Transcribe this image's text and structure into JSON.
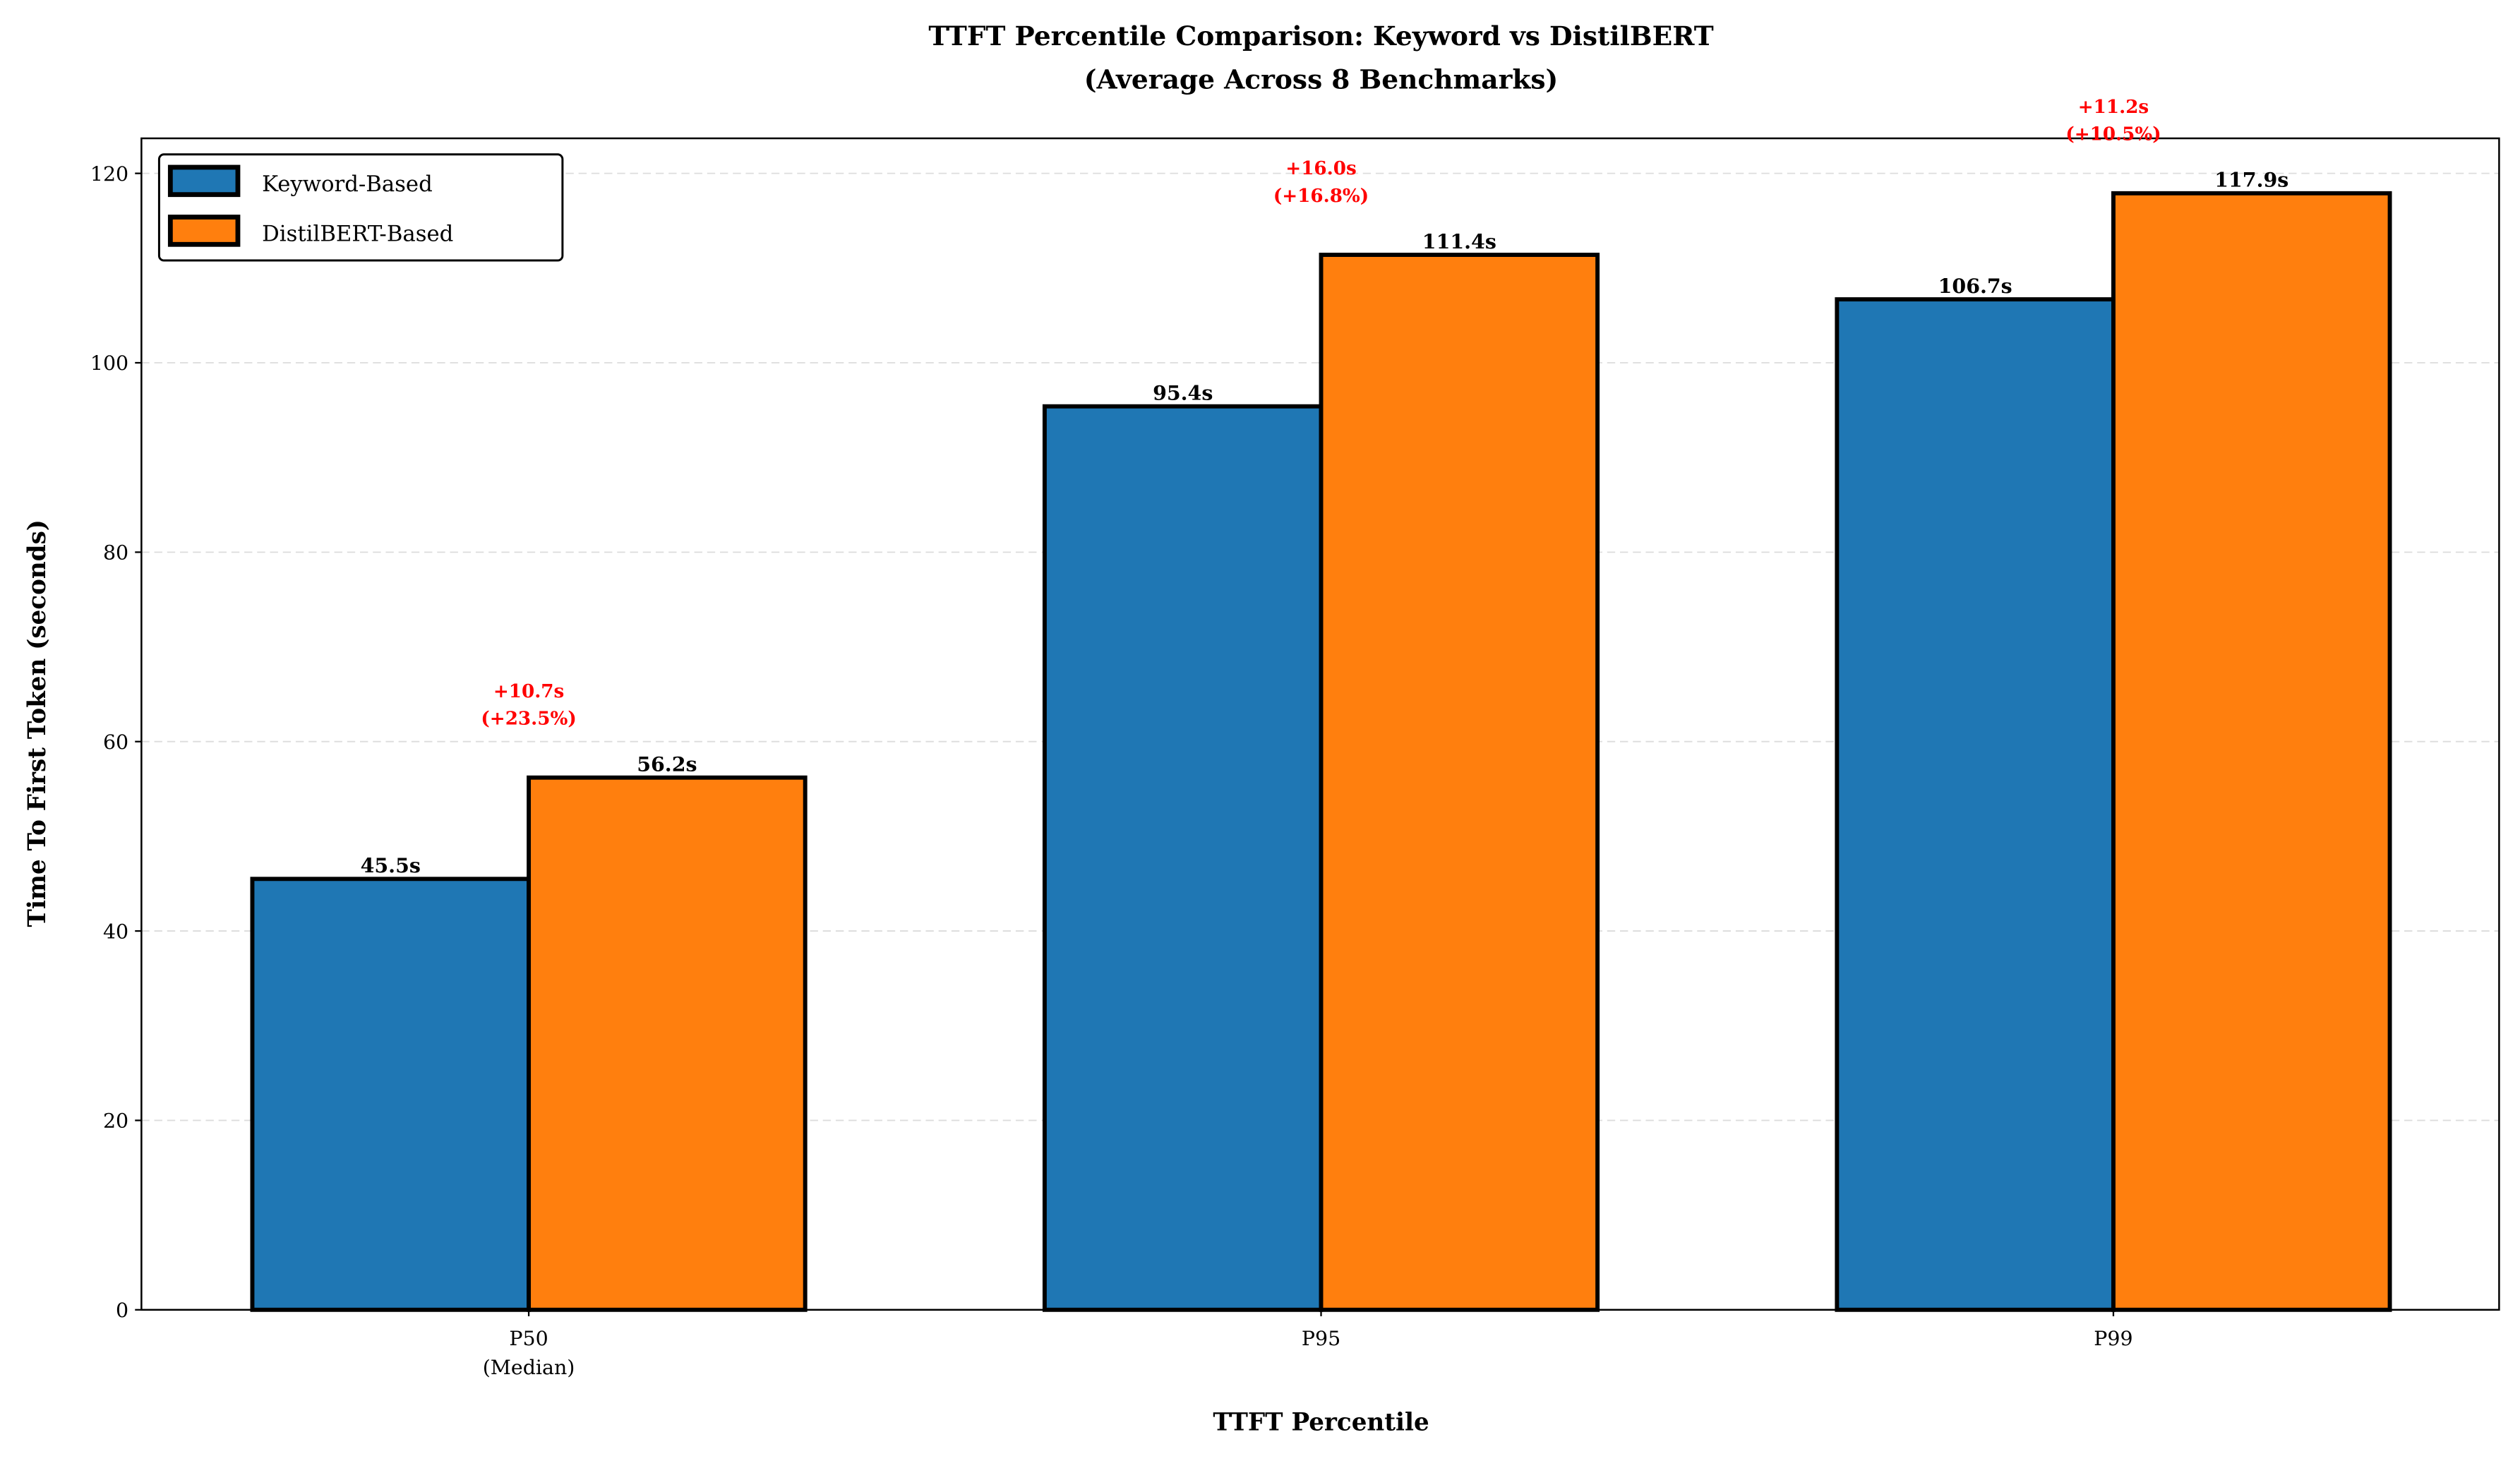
{
  "chart_data": {
    "type": "bar",
    "title": "TTFT Percentile Comparison: Keyword vs DistilBERT",
    "subtitle": "(Average Across 8 Benchmarks)",
    "xlabel": "TTFT Percentile",
    "ylabel": "Time To First Token (seconds)",
    "categories": [
      "P50\n(Median)",
      "P95",
      "P99"
    ],
    "category_lines": [
      [
        "P50",
        "(Median)"
      ],
      [
        "P95"
      ],
      [
        "P99"
      ]
    ],
    "ylim": [
      0,
      123.7
    ],
    "yticks": [
      0,
      20,
      40,
      60,
      80,
      100,
      120
    ],
    "grid": "y-dashed",
    "legend_position": "top-left",
    "series": [
      {
        "name": "Keyword-Based",
        "color": "#1f77b4",
        "values": [
          45.5,
          95.4,
          106.7
        ],
        "labels": [
          "45.5s",
          "95.4s",
          "106.7s"
        ]
      },
      {
        "name": "DistilBERT-Based",
        "color": "#ff7f0e",
        "values": [
          56.2,
          111.4,
          117.9
        ],
        "labels": [
          "56.2s",
          "111.4s",
          "117.9s"
        ]
      }
    ],
    "annotations": [
      {
        "category": "P50",
        "lines": [
          "+10.7s",
          "(+23.5%)"
        ],
        "color": "#ff0000"
      },
      {
        "category": "P95",
        "lines": [
          "+16.0s",
          "(+16.8%)"
        ],
        "color": "#ff0000"
      },
      {
        "category": "P99",
        "lines": [
          "+11.2s",
          "(+10.5%)"
        ],
        "color": "#ff0000"
      }
    ]
  }
}
